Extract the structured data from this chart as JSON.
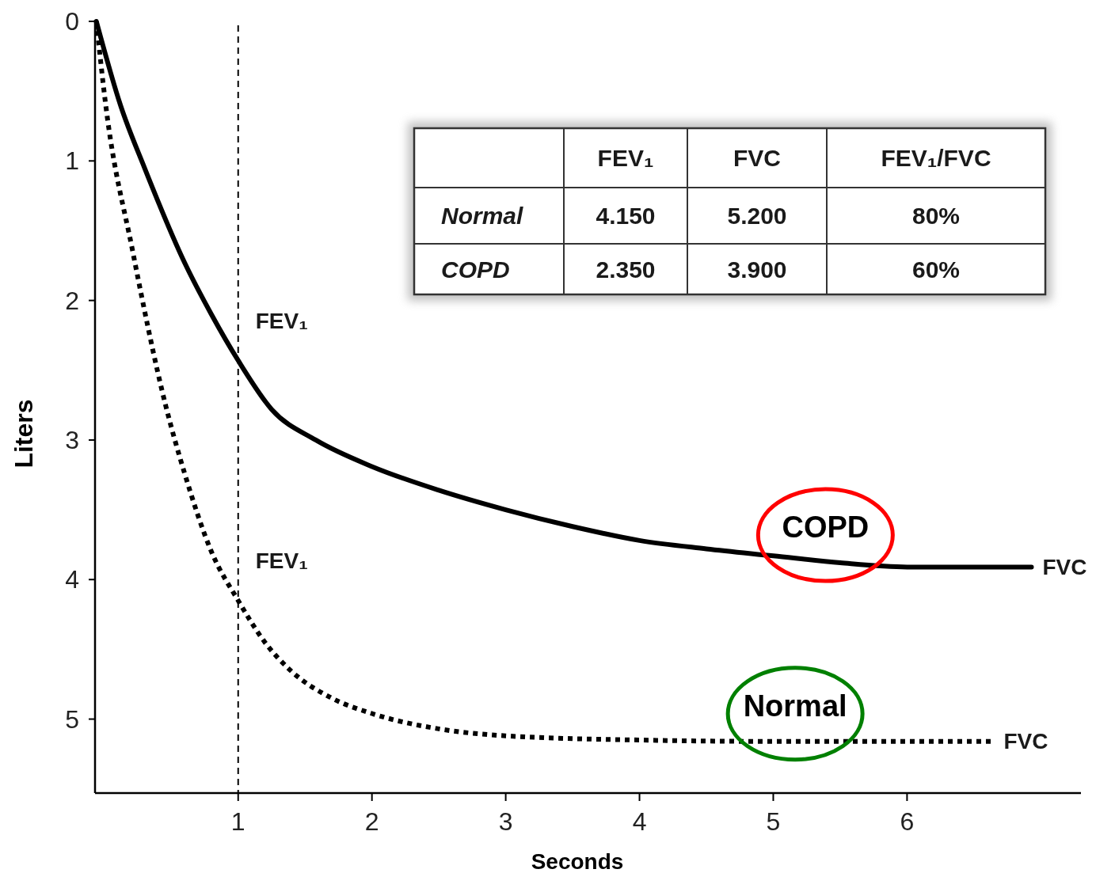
{
  "chart_data": {
    "type": "line",
    "xlabel": "Seconds",
    "ylabel": "Liters",
    "xlim": [
      -0.07,
      7.3
    ],
    "ylim": [
      5.53,
      0
    ],
    "xticks": [
      1,
      2,
      3,
      4,
      5,
      6
    ],
    "yticks": [
      0,
      1,
      2,
      3,
      4,
      5
    ],
    "grid": false,
    "series": [
      {
        "name": "COPD",
        "color": "#000000",
        "line_style": "solid",
        "x": [
          -0.06,
          0.12,
          0.3,
          0.6,
          0.8,
          1,
          1.25,
          1.58,
          2,
          2.5,
          3,
          3.5,
          4,
          4.5,
          5,
          5.5,
          6,
          6.93
        ],
        "values": [
          0,
          0.6,
          1.05,
          1.73,
          2.1,
          2.43,
          2.78,
          3.0,
          3.19,
          3.36,
          3.5,
          3.62,
          3.72,
          3.78,
          3.83,
          3.88,
          3.91,
          3.91
        ]
      },
      {
        "name": "Normal",
        "color": "#000000",
        "line_style": "dotted",
        "x": [
          -0.06,
          0.01,
          0.21,
          0.46,
          0.6,
          0.8,
          1,
          1.2,
          1.39,
          1.7,
          2,
          2.5,
          3,
          4,
          5,
          6,
          6.64
        ],
        "values": [
          0,
          0.6,
          1.64,
          2.76,
          3.24,
          3.8,
          4.15,
          4.45,
          4.65,
          4.85,
          4.96,
          5.07,
          5.12,
          5.15,
          5.16,
          5.16,
          5.16
        ]
      }
    ],
    "ref_lines": [
      {
        "axis": "x",
        "value": 1,
        "line_style": "dashed",
        "color": "#000000"
      }
    ],
    "annotations": [
      "FEV₁",
      "FVC",
      "FEV₁/FVC",
      "Normal",
      "4.150",
      "5.200",
      "80%",
      "COPD",
      "2.350",
      "3.900",
      "60%",
      {
        "text": "FEV₁",
        "x": 1,
        "y": 2.43
      },
      {
        "text": "FEV₁",
        "x": 1,
        "y": 4.15
      },
      {
        "text": "FVC",
        "x": 6.93,
        "y": 3.91
      },
      {
        "text": "FVC",
        "x": 6.64,
        "y": 5.16
      }
    ]
  }
}
